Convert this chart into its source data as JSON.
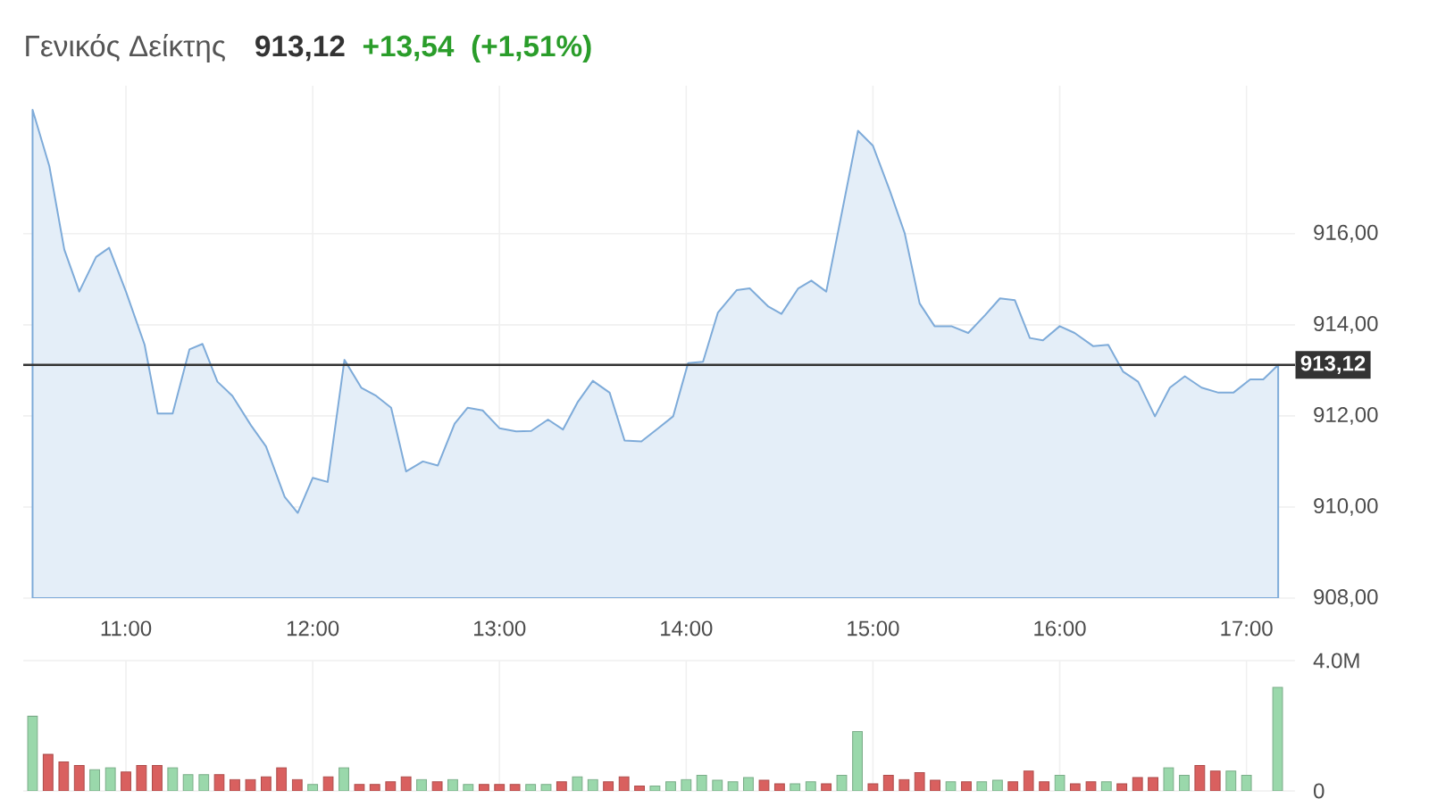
{
  "chart_data": [
    {
      "type": "area",
      "title": "Γενικός Δείκτης",
      "annotations": [
        "913,12",
        "+13,54",
        "(+1,51%)"
      ],
      "color": "#e4eef8",
      "x": [
        10.5,
        10.59,
        10.67,
        10.75,
        10.84,
        10.91,
        11.0,
        11.1,
        11.17,
        11.25,
        11.34,
        11.41,
        11.49,
        11.57,
        11.67,
        11.75,
        11.85,
        11.92,
        12.0,
        12.08,
        12.17,
        12.26,
        12.34,
        12.42,
        12.5,
        12.59,
        12.67,
        12.76,
        12.83,
        12.91,
        13.0,
        13.09,
        13.17,
        13.26,
        13.34,
        13.42,
        13.5,
        13.59,
        13.67,
        13.76,
        13.85,
        13.93,
        14.01,
        14.09,
        14.17,
        14.27,
        14.34,
        14.44,
        14.51,
        14.6,
        14.67,
        14.75,
        14.92,
        15.0,
        15.09,
        15.17,
        15.25,
        15.33,
        15.42,
        15.51,
        15.6,
        15.68,
        15.76,
        15.84,
        15.91,
        16.0,
        16.08,
        16.18,
        16.26,
        16.34,
        16.42,
        16.51,
        16.59,
        16.67,
        16.76,
        16.85,
        16.93,
        17.02,
        17.09,
        17.17
      ],
      "values": [
        918.72,
        917.48,
        915.65,
        914.73,
        915.49,
        915.69,
        914.73,
        913.56,
        912.05,
        912.05,
        913.46,
        913.58,
        912.75,
        912.44,
        911.79,
        911.33,
        910.22,
        909.87,
        910.64,
        910.55,
        913.23,
        912.62,
        912.44,
        912.18,
        910.78,
        911.0,
        910.91,
        911.83,
        912.18,
        912.12,
        911.73,
        911.66,
        911.67,
        911.92,
        911.7,
        912.31,
        912.77,
        912.51,
        911.46,
        911.44,
        911.73,
        911.99,
        913.16,
        913.19,
        914.27,
        914.76,
        914.8,
        914.4,
        914.24,
        914.8,
        914.97,
        914.73,
        918.26,
        917.93,
        916.95,
        916.01,
        914.47,
        913.97,
        913.97,
        913.82,
        914.21,
        914.58,
        914.54,
        913.71,
        913.66,
        913.97,
        913.82,
        913.53,
        913.56,
        912.97,
        912.75,
        911.99,
        912.62,
        912.87,
        912.62,
        912.51,
        912.51,
        912.8,
        912.8,
        913.12
      ],
      "xlim": [
        10.45,
        17.26
      ],
      "ylim": [
        908,
        919.25
      ],
      "xticks": [
        {
          "value": 11,
          "label": "11:00"
        },
        {
          "value": 12,
          "label": "12:00"
        },
        {
          "value": 13,
          "label": "13:00"
        },
        {
          "value": 14,
          "label": "14:00"
        },
        {
          "value": 15,
          "label": "15:00"
        },
        {
          "value": 16,
          "label": "16:00"
        },
        {
          "value": 17,
          "label": "17:00"
        }
      ],
      "yticks": [
        {
          "value": 908,
          "label": "908,00"
        },
        {
          "value": 910,
          "label": "910,00"
        },
        {
          "value": 912,
          "label": "912,00"
        },
        {
          "value": 914,
          "label": "914,00"
        },
        {
          "value": 916,
          "label": "916,00"
        }
      ],
      "ref_lines": [
        {
          "axis": "y",
          "value": 913.12,
          "label": "913,12",
          "color": "#333333"
        }
      ],
      "grid": true
    },
    {
      "type": "bar",
      "tick_labels": "y",
      "x": [
        10.5,
        10.583,
        10.667,
        10.75,
        10.833,
        10.917,
        11.0,
        11.083,
        11.167,
        11.25,
        11.333,
        11.417,
        11.5,
        11.583,
        11.667,
        11.75,
        11.833,
        11.917,
        12.0,
        12.083,
        12.167,
        12.25,
        12.333,
        12.417,
        12.5,
        12.583,
        12.667,
        12.75,
        12.833,
        12.917,
        13.0,
        13.083,
        13.167,
        13.25,
        13.333,
        13.417,
        13.5,
        13.583,
        13.667,
        13.75,
        13.833,
        13.917,
        14.0,
        14.083,
        14.167,
        14.25,
        14.333,
        14.417,
        14.5,
        14.583,
        14.667,
        14.75,
        14.833,
        14.917,
        15.0,
        15.083,
        15.167,
        15.25,
        15.333,
        15.417,
        15.5,
        15.583,
        15.667,
        15.75,
        15.833,
        15.917,
        16.0,
        16.083,
        16.167,
        16.25,
        16.333,
        16.417,
        16.5,
        16.583,
        16.667,
        16.75,
        16.833,
        16.917,
        17.0,
        17.083,
        17.167
      ],
      "values": [
        2.29,
        1.12,
        0.89,
        0.78,
        0.65,
        0.71,
        0.58,
        0.78,
        0.78,
        0.71,
        0.5,
        0.5,
        0.5,
        0.35,
        0.35,
        0.43,
        0.71,
        0.35,
        0.2,
        0.43,
        0.71,
        0.2,
        0.2,
        0.28,
        0.43,
        0.35,
        0.28,
        0.35,
        0.2,
        0.2,
        0.2,
        0.2,
        0.2,
        0.2,
        0.28,
        0.43,
        0.35,
        0.28,
        0.43,
        0.15,
        0.15,
        0.28,
        0.35,
        0.48,
        0.33,
        0.28,
        0.41,
        0.33,
        0.22,
        0.22,
        0.28,
        0.22,
        0.48,
        1.82,
        0.22,
        0.48,
        0.35,
        0.56,
        0.33,
        0.28,
        0.28,
        0.28,
        0.33,
        0.28,
        0.61,
        0.28,
        0.48,
        0.22,
        0.28,
        0.28,
        0.22,
        0.41,
        0.41,
        0.71,
        0.48,
        0.78,
        0.61,
        0.61,
        0.48,
        null,
        3.18
      ],
      "colors": [
        "#9ad8ab",
        "#d9605f",
        "#d9605f",
        "#d9605f",
        "#9ad8ab",
        "#9ad8ab",
        "#d9605f",
        "#d9605f",
        "#d9605f",
        "#9ad8ab",
        "#9ad8ab",
        "#9ad8ab",
        "#d9605f",
        "#d9605f",
        "#d9605f",
        "#d9605f",
        "#d9605f",
        "#d9605f",
        "#9ad8ab",
        "#d9605f",
        "#9ad8ab",
        "#d9605f",
        "#d9605f",
        "#d9605f",
        "#d9605f",
        "#9ad8ab",
        "#d9605f",
        "#9ad8ab",
        "#9ad8ab",
        "#d9605f",
        "#d9605f",
        "#d9605f",
        "#9ad8ab",
        "#9ad8ab",
        "#d9605f",
        "#9ad8ab",
        "#9ad8ab",
        "#d9605f",
        "#d9605f",
        "#d9605f",
        "#9ad8ab",
        "#9ad8ab",
        "#9ad8ab",
        "#9ad8ab",
        "#9ad8ab",
        "#9ad8ab",
        "#9ad8ab",
        "#d9605f",
        "#d9605f",
        "#9ad8ab",
        "#9ad8ab",
        "#d9605f",
        "#9ad8ab",
        "#9ad8ab",
        "#d9605f",
        "#d9605f",
        "#d9605f",
        "#d9605f",
        "#d9605f",
        "#9ad8ab",
        "#d9605f",
        "#9ad8ab",
        "#9ad8ab",
        "#d9605f",
        "#d9605f",
        "#d9605f",
        "#9ad8ab",
        "#d9605f",
        "#d9605f",
        "#9ad8ab",
        "#d9605f",
        "#d9605f",
        "#d9605f",
        "#9ad8ab",
        "#9ad8ab",
        "#d9605f",
        "#d9605f",
        "#9ad8ab",
        "#9ad8ab",
        null,
        "#9ad8ab"
      ],
      "xlim": [
        10.45,
        17.26
      ],
      "ylim": [
        0,
        4
      ],
      "xticks": [
        {
          "value": 11,
          "label": null
        },
        {
          "value": 12,
          "label": null
        },
        {
          "value": 13,
          "label": null
        },
        {
          "value": 14,
          "label": null
        },
        {
          "value": 15,
          "label": null
        },
        {
          "value": 16,
          "label": null
        },
        {
          "value": 17,
          "label": null
        }
      ],
      "yticks": [
        {
          "value": 0,
          "label": "0"
        },
        {
          "value": 4,
          "label": "4.0M"
        }
      ],
      "grid": true
    }
  ]
}
